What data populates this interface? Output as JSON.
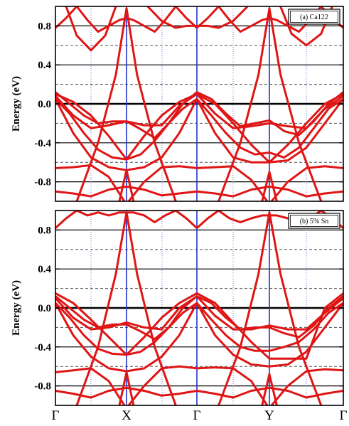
{
  "chart_data": [
    {
      "type": "line",
      "legend": "(a) Ca122",
      "ylabel": "Energy (eV)",
      "ylim": [
        -1.0,
        1.0
      ],
      "yticks": [
        -0.8,
        -0.4,
        0.0,
        0.4,
        0.8
      ],
      "ytick_labels": [
        "-0.8",
        "-0.4",
        "0.0",
        "0.4",
        "0.8"
      ],
      "fermi_level": 0.0,
      "dashed_levels": [
        -0.6,
        -0.2,
        0.2,
        0.6
      ],
      "high_symmetry_points": [
        "Γ",
        "X",
        "Γ",
        "Y",
        "Γ"
      ],
      "x_positions": [
        0,
        1,
        2,
        3,
        4
      ],
      "series": [
        {
          "x": [
            0,
            0.25,
            0.5,
            0.75,
            1,
            1.25,
            1.5,
            1.75,
            2,
            2.25,
            2.5,
            2.75,
            3,
            3.25,
            3.5,
            3.75,
            4
          ],
          "y": [
            0.1,
            0.02,
            -0.12,
            -0.33,
            -0.57,
            -0.33,
            -0.12,
            0.02,
            0.1,
            0.0,
            -0.2,
            -0.42,
            -0.6,
            -0.42,
            -0.2,
            0.0,
            0.1
          ]
        },
        {
          "x": [
            0,
            0.25,
            0.5,
            0.75,
            1,
            1.25,
            1.5,
            1.75,
            2,
            2.25,
            2.5,
            2.75,
            3,
            3.25,
            3.5,
            3.75,
            4
          ],
          "y": [
            0.08,
            -0.12,
            -0.25,
            -0.22,
            -0.18,
            -0.22,
            -0.22,
            -0.02,
            0.1,
            -0.1,
            -0.25,
            -0.23,
            -0.2,
            -0.23,
            -0.25,
            -0.05,
            0.08
          ]
        },
        {
          "x": [
            0,
            0.2,
            0.4,
            0.6,
            0.8,
            1,
            1.2,
            1.4,
            1.6,
            1.8,
            2,
            2.2,
            2.4,
            2.6,
            2.8,
            3,
            3.2,
            3.4,
            3.6,
            3.8,
            4
          ],
          "y": [
            0.12,
            0.0,
            -0.12,
            -0.2,
            -0.18,
            -0.18,
            -0.26,
            -0.35,
            -0.2,
            0.0,
            0.12,
            0.05,
            -0.1,
            -0.23,
            -0.2,
            -0.17,
            -0.28,
            -0.32,
            -0.18,
            0.0,
            0.12
          ]
        },
        {
          "x": [
            0,
            0.2,
            0.4,
            0.6,
            0.8,
            1,
            1.2,
            1.4,
            1.6,
            1.8,
            2,
            2.2,
            2.4,
            2.6,
            2.8,
            3,
            3.2,
            3.4,
            3.6,
            3.8,
            4
          ],
          "y": [
            0.05,
            -0.1,
            -0.3,
            -0.47,
            -0.55,
            -0.57,
            -0.52,
            -0.38,
            -0.2,
            -0.05,
            0.05,
            -0.12,
            -0.3,
            -0.45,
            -0.52,
            -0.5,
            -0.55,
            -0.45,
            -0.25,
            -0.05,
            0.05
          ]
        },
        {
          "x": [
            0,
            0.25,
            0.5,
            0.75,
            1,
            1.25,
            1.5,
            1.75,
            2,
            2.25,
            2.5,
            2.75,
            3,
            3.25,
            3.5,
            3.75,
            4
          ],
          "y": [
            0.05,
            -0.3,
            -0.55,
            -0.65,
            -0.68,
            -0.65,
            -0.55,
            -0.3,
            0.05,
            -0.3,
            -0.55,
            -0.6,
            -0.6,
            -0.58,
            -0.45,
            -0.2,
            0.05
          ]
        },
        {
          "x": [
            0,
            0.25,
            0.5,
            0.75,
            0.97
          ],
          "y": [
            -0.66,
            -0.65,
            -0.63,
            -0.75,
            -1.0
          ]
        },
        {
          "x": [
            1.03,
            1.25,
            1.5,
            1.75,
            2,
            2.25,
            2.5,
            2.75,
            2.97
          ],
          "y": [
            -1.0,
            -0.8,
            -0.65,
            -0.64,
            -0.66,
            -0.65,
            -0.64,
            -0.78,
            -1.0
          ]
        },
        {
          "x": [
            3.03,
            3.25,
            3.5,
            3.75,
            4
          ],
          "y": [
            -1.0,
            -0.8,
            -0.66,
            -0.64,
            -0.66
          ]
        },
        {
          "x": [
            0.9,
            1,
            1.1
          ],
          "y": [
            -1.0,
            -0.68,
            -1.0
          ]
        },
        {
          "x": [
            2.9,
            3,
            3.1
          ],
          "y": [
            -1.0,
            -0.7,
            -1.0
          ]
        },
        {
          "x": [
            0,
            0.25,
            0.5,
            0.75,
            1,
            1.25,
            1.5,
            1.75,
            2,
            2.25,
            2.5,
            2.75,
            3,
            3.25,
            3.5,
            3.75,
            4
          ],
          "y": [
            -0.9,
            -0.92,
            -0.95,
            -0.88,
            -0.85,
            -0.88,
            -0.94,
            -0.92,
            -0.9,
            -0.92,
            -0.95,
            -0.88,
            -0.85,
            -0.88,
            -0.95,
            -0.92,
            -0.9
          ]
        },
        {
          "x": [
            0,
            0.15,
            0.3,
            0.45,
            0.6,
            0.75,
            0.9,
            1,
            1.1,
            1.25,
            1.4,
            1.55,
            1.7,
            1.85,
            2
          ],
          "y": [
            0.78,
            0.88,
            1.0,
            0.86,
            0.74,
            0.8,
            0.86,
            0.88,
            0.86,
            0.8,
            0.74,
            0.86,
            1.0,
            0.88,
            0.78
          ]
        },
        {
          "x": [
            2,
            2.15,
            2.3,
            2.45,
            2.6,
            2.75,
            2.9,
            3,
            3.1,
            3.25,
            3.4,
            3.55,
            3.7,
            3.85,
            4
          ],
          "y": [
            0.78,
            0.88,
            1.0,
            0.86,
            0.74,
            0.8,
            0.86,
            0.88,
            0.86,
            0.8,
            0.74,
            0.86,
            1.0,
            0.88,
            0.78
          ]
        },
        {
          "x": [
            0.15,
            0.3,
            0.5,
            0.7,
            0.85
          ],
          "y": [
            1.0,
            0.7,
            0.55,
            0.7,
            1.0
          ]
        },
        {
          "x": [
            1.3,
            1.5,
            1.7,
            1.85,
            2,
            2.15,
            2.3,
            2.5,
            2.7
          ],
          "y": [
            1.0,
            0.85,
            0.78,
            0.8,
            0.8,
            0.8,
            0.78,
            0.85,
            1.0
          ]
        },
        {
          "x": [
            3.15,
            3.3,
            3.5,
            3.7,
            3.85
          ],
          "y": [
            1.0,
            0.72,
            0.6,
            0.72,
            1.0
          ]
        },
        {
          "x": [
            0.3,
            0.6,
            0.85,
            1,
            1.15,
            1.4,
            1.7
          ],
          "y": [
            -1.0,
            -0.4,
            0.3,
            0.98,
            0.3,
            -0.4,
            -1.0
          ]
        },
        {
          "x": [
            2.3,
            2.6,
            2.85,
            3,
            3.15,
            3.4,
            3.7
          ],
          "y": [
            -1.0,
            -0.4,
            0.3,
            0.98,
            0.3,
            -0.4,
            -1.0
          ]
        }
      ]
    },
    {
      "type": "line",
      "legend": "(b) 5% Sn",
      "ylabel": "Energy (eV)",
      "ylim": [
        -1.0,
        1.0
      ],
      "yticks": [
        -0.8,
        -0.4,
        0.0,
        0.4,
        0.8
      ],
      "ytick_labels": [
        "-0.8",
        "-0.4",
        "0.0",
        "0.4",
        "0.8"
      ],
      "fermi_level": 0.0,
      "dashed_levels": [
        -0.6,
        -0.2,
        0.2,
        0.6
      ],
      "high_symmetry_points": [
        "Γ",
        "X",
        "Γ",
        "Y",
        "Γ"
      ],
      "x_positions": [
        0,
        1,
        2,
        3,
        4
      ],
      "series": [
        {
          "x": [
            0,
            0.25,
            0.5,
            0.75,
            1,
            1.25,
            1.5,
            1.75,
            2,
            2.25,
            2.5,
            2.75,
            3,
            3.25,
            3.5,
            3.75,
            4
          ],
          "y": [
            0.15,
            0.05,
            -0.12,
            -0.3,
            -0.48,
            -0.3,
            -0.1,
            0.05,
            0.15,
            0.05,
            -0.15,
            -0.35,
            -0.52,
            -0.52,
            -0.52,
            0.0,
            0.15
          ]
        },
        {
          "x": [
            0,
            0.25,
            0.5,
            0.75,
            1,
            1.25,
            1.5,
            1.75,
            2,
            2.25,
            2.5,
            2.75,
            3,
            3.25,
            3.5,
            3.75,
            4
          ],
          "y": [
            0.1,
            -0.1,
            -0.22,
            -0.2,
            -0.15,
            -0.2,
            -0.22,
            0.0,
            0.12,
            -0.08,
            -0.22,
            -0.22,
            -0.18,
            -0.22,
            -0.22,
            -0.05,
            0.1
          ]
        },
        {
          "x": [
            0,
            0.2,
            0.4,
            0.6,
            0.8,
            1,
            1.2,
            1.4,
            1.6,
            1.8,
            2,
            2.2,
            2.4,
            2.6,
            2.8,
            3,
            3.2,
            3.4,
            3.6,
            3.8,
            4
          ],
          "y": [
            0.12,
            0.0,
            -0.12,
            -0.2,
            -0.17,
            -0.17,
            -0.24,
            -0.32,
            -0.2,
            0.0,
            0.12,
            0.05,
            -0.1,
            -0.22,
            -0.2,
            -0.2,
            -0.26,
            -0.3,
            -0.18,
            0.0,
            0.12
          ]
        },
        {
          "x": [
            0,
            0.2,
            0.4,
            0.6,
            0.8,
            1,
            1.2,
            1.4,
            1.6,
            1.8,
            2,
            2.2,
            2.4,
            2.6,
            2.8,
            3,
            3.2,
            3.4,
            3.6,
            3.8,
            4
          ],
          "y": [
            0.05,
            -0.1,
            -0.28,
            -0.42,
            -0.47,
            -0.48,
            -0.45,
            -0.35,
            -0.2,
            -0.05,
            0.05,
            -0.12,
            -0.28,
            -0.4,
            -0.44,
            -0.44,
            -0.4,
            -0.35,
            -0.22,
            -0.05,
            0.05
          ]
        },
        {
          "x": [
            0,
            0.25,
            0.5,
            0.75,
            1,
            1.25,
            1.5,
            1.75,
            2,
            2.25,
            2.5,
            2.75,
            3,
            3.25,
            3.5,
            3.75,
            4
          ],
          "y": [
            0.05,
            -0.28,
            -0.5,
            -0.62,
            -0.65,
            -0.62,
            -0.5,
            -0.28,
            0.05,
            -0.28,
            -0.48,
            -0.58,
            -0.6,
            -0.58,
            -0.45,
            -0.2,
            0.05
          ]
        },
        {
          "x": [
            0,
            0.25,
            0.5,
            0.75,
            0.97
          ],
          "y": [
            -0.66,
            -0.64,
            -0.62,
            -0.75,
            -1.0
          ]
        },
        {
          "x": [
            1.03,
            1.25,
            1.5,
            1.75,
            2,
            2.25,
            2.5,
            2.75,
            2.97
          ],
          "y": [
            -1.0,
            -0.8,
            -0.62,
            -0.6,
            -0.62,
            -0.61,
            -0.62,
            -0.75,
            -1.0
          ]
        },
        {
          "x": [
            3.03,
            3.25,
            3.5,
            3.75,
            4
          ],
          "y": [
            -1.0,
            -0.8,
            -0.65,
            -0.63,
            -0.64
          ]
        },
        {
          "x": [
            0.9,
            1,
            1.1
          ],
          "y": [
            -1.0,
            -0.66,
            -1.0
          ]
        },
        {
          "x": [
            2.9,
            3,
            3.1
          ],
          "y": [
            -1.0,
            -0.68,
            -1.0
          ]
        },
        {
          "x": [
            0,
            0.25,
            0.5,
            0.75,
            1,
            1.25,
            1.5,
            1.75,
            2,
            2.25,
            2.5,
            2.75,
            3,
            3.25,
            3.5,
            3.75,
            4
          ],
          "y": [
            -0.85,
            -0.88,
            -0.92,
            -0.85,
            -0.82,
            -0.85,
            -0.9,
            -0.88,
            -0.85,
            -0.88,
            -0.92,
            -0.85,
            -0.82,
            -0.85,
            -0.92,
            -0.88,
            -0.85
          ]
        },
        {
          "x": [
            0,
            0.15,
            0.3,
            0.45,
            0.6,
            0.75,
            0.9,
            1,
            1.1,
            1.25,
            1.4,
            1.55,
            1.7,
            1.85,
            2
          ],
          "y": [
            0.82,
            0.92,
            1.0,
            0.95,
            0.98,
            0.95,
            0.98,
            0.98,
            0.98,
            0.95,
            0.88,
            0.95,
            1.0,
            0.92,
            0.82
          ]
        },
        {
          "x": [
            2,
            2.15,
            2.3,
            2.45,
            2.6,
            2.75,
            2.9,
            3,
            3.1,
            3.25,
            3.4,
            3.55,
            3.7,
            3.85,
            4
          ],
          "y": [
            0.82,
            0.92,
            1.0,
            0.92,
            0.88,
            0.92,
            0.95,
            0.95,
            0.95,
            0.92,
            0.88,
            0.92,
            1.0,
            0.92,
            0.82
          ]
        },
        {
          "x": [
            0.3,
            0.6,
            0.85,
            1,
            1.15,
            1.4,
            1.7
          ],
          "y": [
            -1.0,
            -0.4,
            0.35,
            0.98,
            0.35,
            -0.4,
            -1.0
          ]
        },
        {
          "x": [
            2.3,
            2.6,
            2.85,
            3,
            3.15,
            3.4,
            3.7
          ],
          "y": [
            -1.0,
            -0.4,
            0.35,
            0.98,
            0.35,
            -0.4,
            -1.0
          ]
        }
      ]
    }
  ]
}
